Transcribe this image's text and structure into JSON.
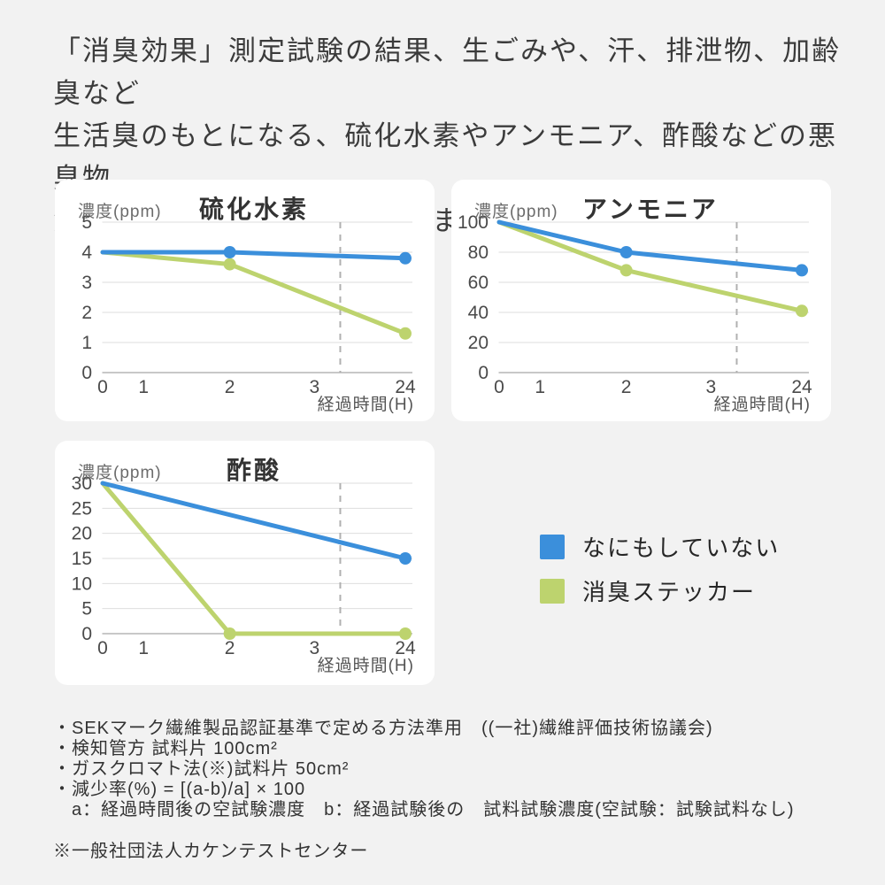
{
  "header": {
    "lines": [
      "「消臭効果」測定試験の結果、生ごみや、汗、排泄物、加齢臭など",
      "生活臭のもとになる、硫化水素やアンモニア、酢酸などの悪臭物",
      "質に対して消臭効果を発揮しました。"
    ]
  },
  "colors": {
    "page_background": "#f2f2f2",
    "card_background": "#ffffff",
    "blue_series": "#3B8FDB",
    "green_series": "#BDD36E",
    "gridline": "#dedede",
    "axis_line": "#b5b5b5",
    "dashed_break_line": "#b0b0b0"
  },
  "chart_data": [
    {
      "type": "line",
      "title": "硫化水素",
      "ylabel": "濃度(ppm)",
      "xlabel": "経過時間(H)",
      "categories": [
        "0",
        "1",
        "2",
        "3",
        "24"
      ],
      "yticks": [
        0,
        1,
        2,
        3,
        4,
        5
      ],
      "ylim": [
        0,
        5
      ],
      "grid": true,
      "dashed_vertical_break_between": [
        "3",
        "24"
      ],
      "series": [
        {
          "name": "なにもしていない",
          "color": "#3B8FDB",
          "points": [
            [
              0,
              4
            ],
            [
              2,
              4
            ],
            [
              24,
              3.8
            ]
          ],
          "markers": [
            2,
            24
          ]
        },
        {
          "name": "消臭ステッカー",
          "color": "#BDD36E",
          "points": [
            [
              0,
              4
            ],
            [
              2,
              3.6
            ],
            [
              24,
              1.3
            ]
          ],
          "markers": [
            2,
            24
          ]
        }
      ]
    },
    {
      "type": "line",
      "title": "アンモニア",
      "ylabel": "濃度(ppm)",
      "xlabel": "経過時間(H)",
      "categories": [
        "0",
        "1",
        "2",
        "3",
        "24"
      ],
      "yticks": [
        0,
        20,
        40,
        60,
        80,
        100
      ],
      "ylim": [
        0,
        100
      ],
      "grid": true,
      "dashed_vertical_break_between": [
        "3",
        "24"
      ],
      "series": [
        {
          "name": "なにもしていない",
          "color": "#3B8FDB",
          "points": [
            [
              0,
              100
            ],
            [
              2,
              80
            ],
            [
              24,
              68
            ]
          ],
          "markers": [
            2,
            24
          ]
        },
        {
          "name": "消臭ステッカー",
          "color": "#BDD36E",
          "points": [
            [
              0,
              100
            ],
            [
              2,
              68
            ],
            [
              24,
              41
            ]
          ],
          "markers": [
            2,
            24
          ]
        }
      ]
    },
    {
      "type": "line",
      "title": "酢酸",
      "ylabel": "濃度(ppm)",
      "xlabel": "経過時間(H)",
      "categories": [
        "0",
        "1",
        "2",
        "3",
        "24"
      ],
      "yticks": [
        0,
        5,
        10,
        15,
        20,
        25,
        30
      ],
      "ylim": [
        0,
        30
      ],
      "grid": true,
      "dashed_vertical_break_between": [
        "3",
        "24"
      ],
      "series": [
        {
          "name": "なにもしていない",
          "color": "#3B8FDB",
          "points": [
            [
              0,
              30
            ],
            [
              24,
              15
            ]
          ],
          "markers": [
            24
          ]
        },
        {
          "name": "消臭ステッカー",
          "color": "#BDD36E",
          "points": [
            [
              0,
              30
            ],
            [
              2,
              0
            ],
            [
              24,
              0
            ]
          ],
          "markers": [
            2,
            24
          ]
        }
      ]
    }
  ],
  "legend": {
    "items": [
      {
        "label": "なにもしていない",
        "color": "#3B8FDB"
      },
      {
        "label": "消臭ステッカー",
        "color": "#BDD36E"
      }
    ]
  },
  "footnotes": {
    "lines": [
      "・SEKマーク繊維製品認証基準で定める方法準用　((一社)繊維評価技術協議会)",
      "・検知管方 試料片 100cm²",
      "・ガスクロマト法(※)試料片 50cm²",
      "・減少率(%) = [(a-b)/a] × 100",
      "　a：経過時間後の空試験濃度　b：経過試験後の　試料試験濃度(空試験：試験試料なし)"
    ],
    "certifier": "※一般社団法人カケンテストセンター"
  }
}
